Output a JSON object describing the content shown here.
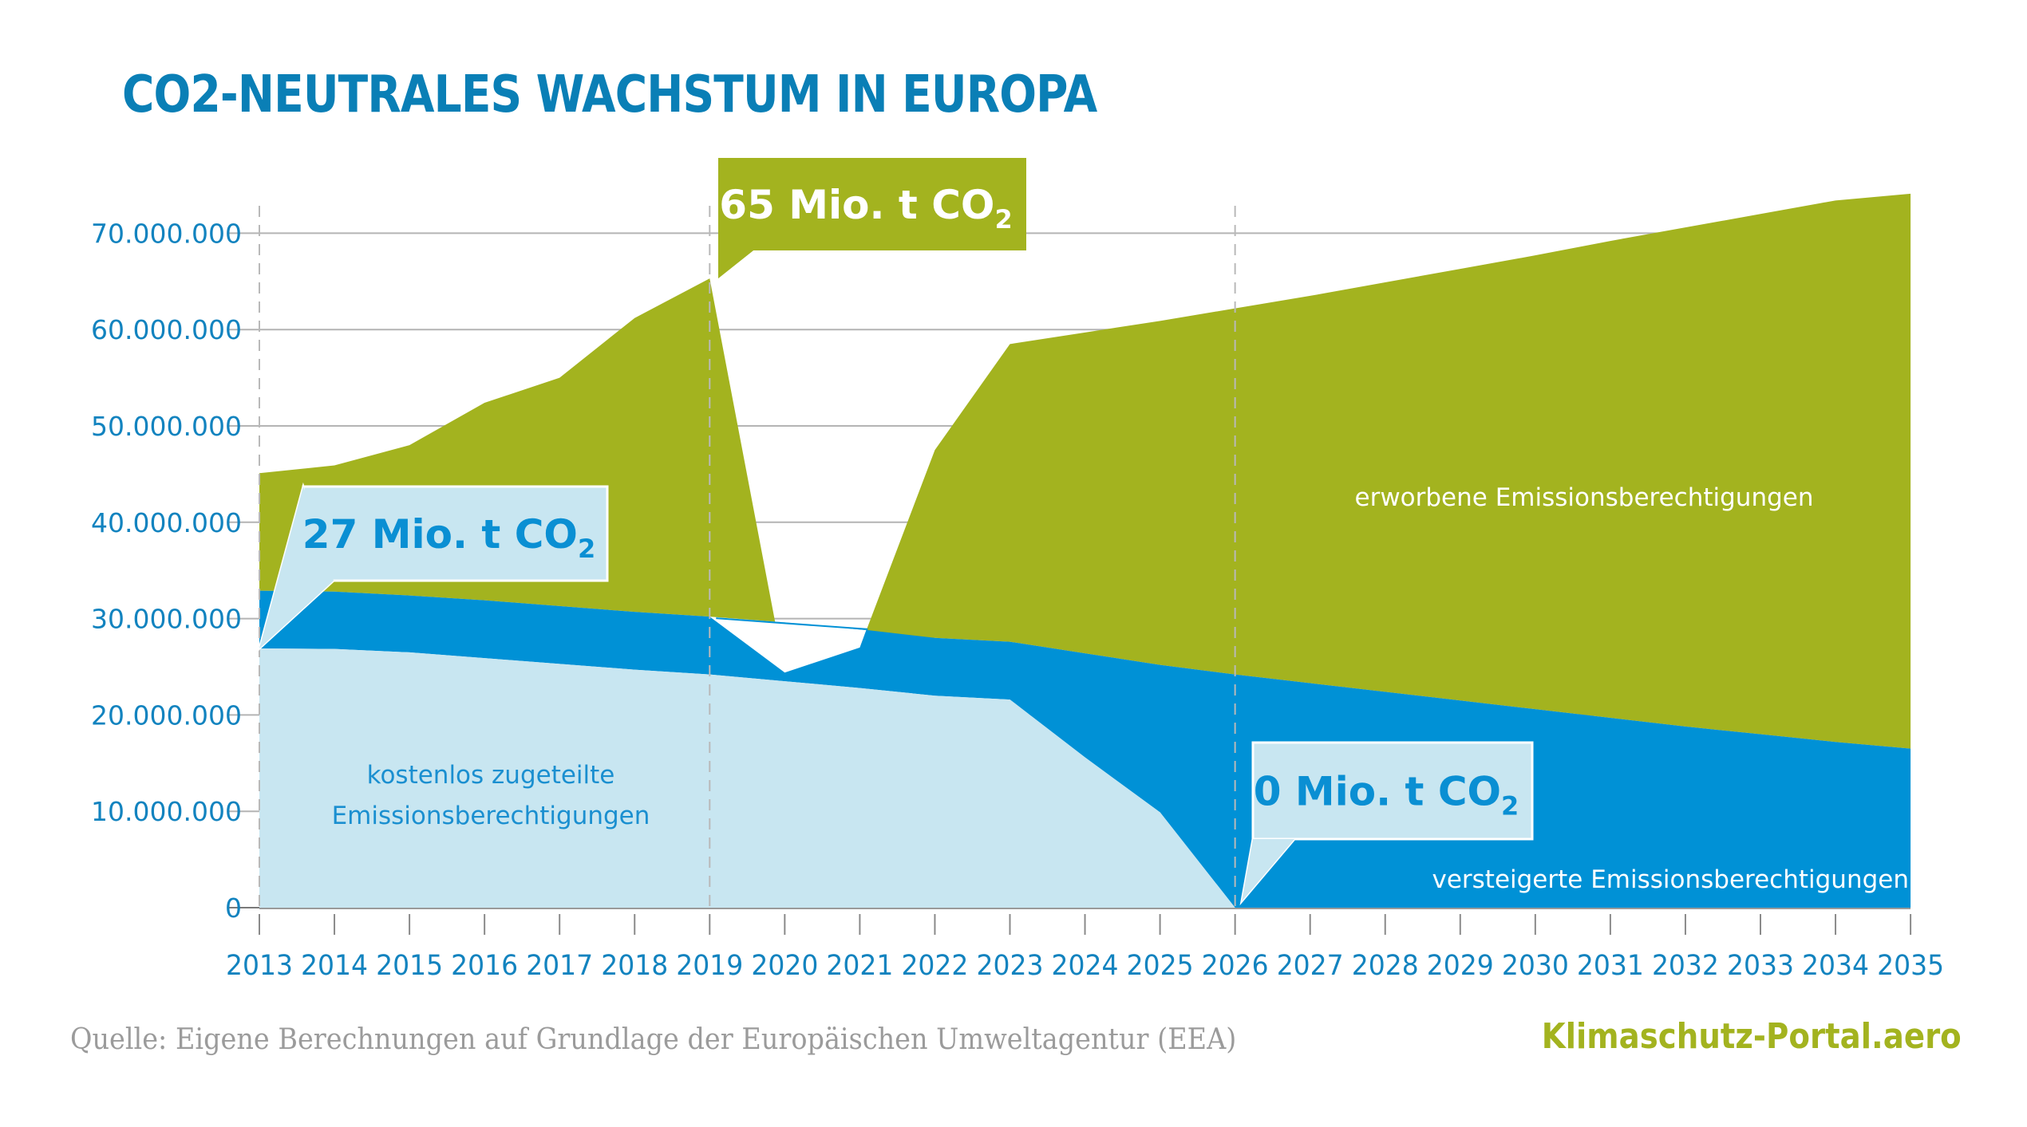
{
  "title": "CO2-NEUTRALES WACHSTUM IN EUROPA",
  "footer": {
    "source": "Quelle: Eigene Berechnungen auf Grundlage der Europäischen Umweltagentur (EEA)",
    "brand": "Klimaschutz-Portal.aero"
  },
  "colors": {
    "title": "#0a7fb6",
    "axis_text": "#1283bf",
    "free": "#c8e6f1",
    "auctioned": "#0091d6",
    "purchased": "#a3b31f",
    "grid": "#b4b4b4",
    "source_text": "#9b9b9b"
  },
  "chart_data": {
    "type": "area",
    "stacked": true,
    "title": "CO2-NEUTRALES WACHSTUM IN EUROPA",
    "xlabel": "",
    "ylabel": "",
    "ylim": [
      0,
      70000000
    ],
    "yticks": [
      0,
      10000000,
      20000000,
      30000000,
      40000000,
      50000000,
      60000000,
      70000000
    ],
    "ytick_labels": [
      "0",
      "10.000.000",
      "20.000.000",
      "30.000.000",
      "40.000.000",
      "50.000.000",
      "60.000.000",
      "70.000.000"
    ],
    "grid": true,
    "x": [
      "2013",
      "2014",
      "2015",
      "2016",
      "2017",
      "2018",
      "2019",
      "2020",
      "2021",
      "2022",
      "2023",
      "2024",
      "2025",
      "2026",
      "2027",
      "2028",
      "2029",
      "2030",
      "2031",
      "2032",
      "2033",
      "2034",
      "2035"
    ],
    "series": [
      {
        "name": "kostenlos zugeteilte Emissionsberechtigungen",
        "label_lines": [
          "kostenlos zugeteilte",
          "Emissionsberechtigungen"
        ],
        "color_key": "free",
        "cumulative_top": [
          26900000,
          26850000,
          26500000,
          25900000,
          25300000,
          24700000,
          24200000,
          23500000,
          22800000,
          22000000,
          21600000,
          15600000,
          9900000,
          0,
          0,
          0,
          0,
          0,
          0,
          0,
          0,
          0,
          0
        ]
      },
      {
        "name": "versteigerte Emissionsberechtigungen",
        "label_lines": [
          "versteigerte Emissionsberechtigungen"
        ],
        "color_key": "auctioned",
        "cumulative_top": [
          32900000,
          32800000,
          32400000,
          31900000,
          31300000,
          30700000,
          30200000,
          29600000,
          28900000,
          28000000,
          27600000,
          26400000,
          25200000,
          24200000,
          23300000,
          22400000,
          21500000,
          20600000,
          19700000,
          18800000,
          18000000,
          17200000,
          16500000
        ]
      },
      {
        "name": "erworbene Emissionsberechtigungen",
        "label_lines": [
          "erworbene Emissionsberechtigungen"
        ],
        "color_key": "purchased",
        "cumulative_top": [
          45100000,
          45900000,
          48000000,
          52400000,
          55000000,
          61200000,
          65300000,
          24400000,
          27000000,
          47500000,
          58500000,
          59700000,
          60900000,
          62200000,
          63500000,
          64900000,
          66300000,
          67700000,
          69200000,
          70600000,
          72000000,
          73400000,
          74100000
        ]
      }
    ],
    "gap_note": "In 2020–2021 the total drops below the auctioned band (white gap)",
    "reference_lines_x": [
      "2013",
      "2019",
      "2026"
    ],
    "annotations": [
      {
        "text_main": "27 Mio. t CO",
        "text_sub": "2",
        "points_to_x": "2013",
        "points_to_value": 26900000,
        "style": "light"
      },
      {
        "text_main": "65 Mio. t CO",
        "text_sub": "2",
        "points_to_x": "2019",
        "points_to_value": 65300000,
        "style": "green"
      },
      {
        "text_main": "0 Mio. t CO",
        "text_sub": "2",
        "points_to_x": "2026",
        "points_to_value": 0,
        "style": "light"
      }
    ]
  }
}
